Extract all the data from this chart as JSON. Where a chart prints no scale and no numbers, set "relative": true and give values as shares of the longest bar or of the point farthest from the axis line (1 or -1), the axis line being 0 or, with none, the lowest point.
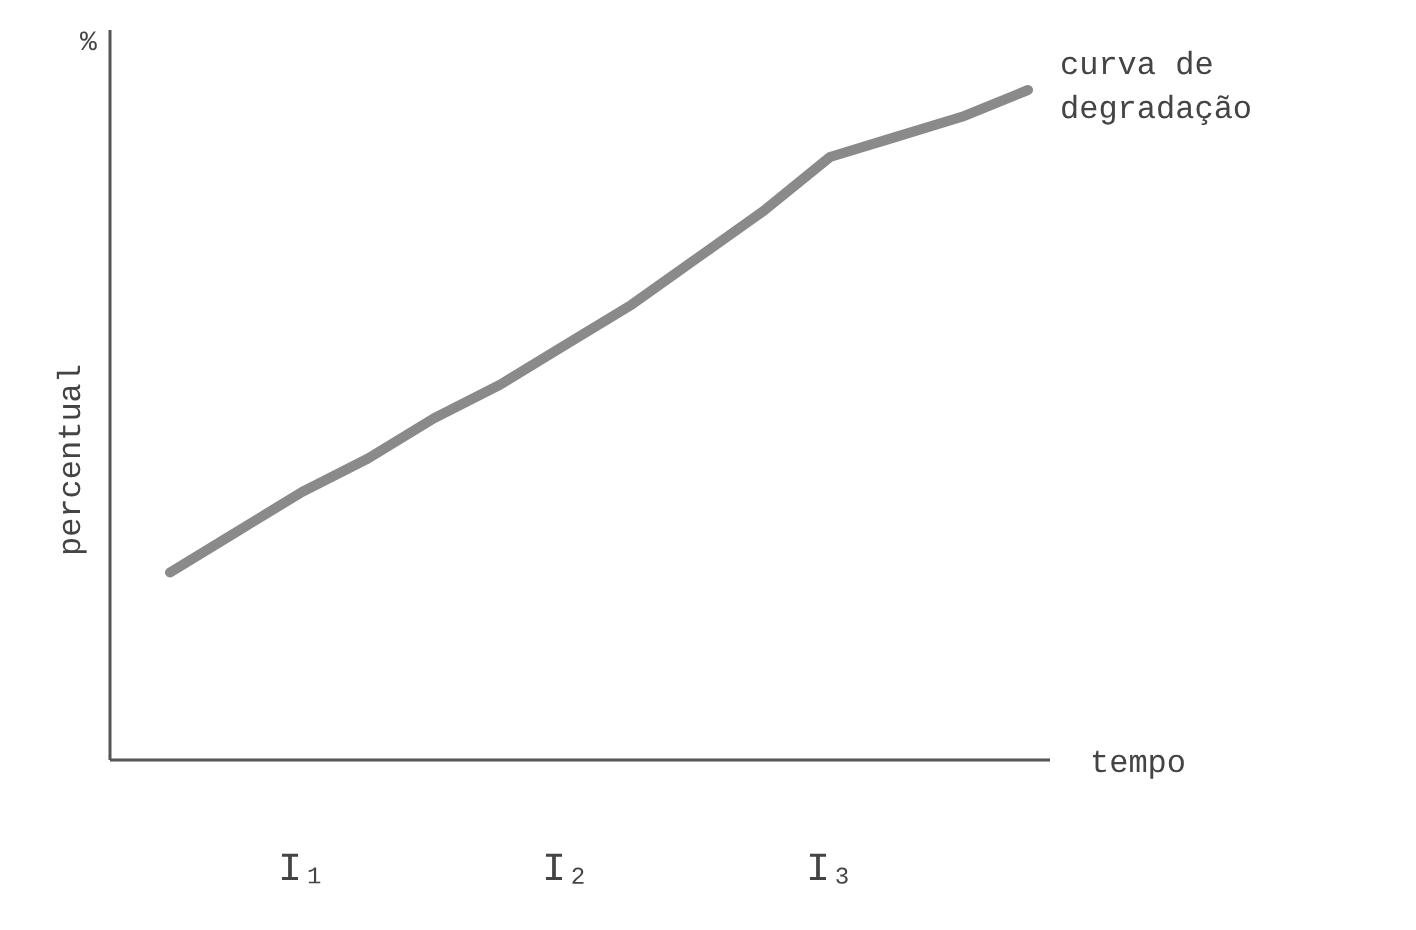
{
  "chart_data": {
    "type": "line",
    "relative": true,
    "xlabel": "tempo",
    "ylabel": "percentual",
    "annotations": [
      "%"
    ],
    "categories": [
      null,
      null,
      "I₁",
      null,
      null,
      null,
      "I₂",
      null,
      null,
      null,
      "I₃",
      null,
      null,
      null
    ],
    "series": [
      {
        "name": "curva de degradação",
        "color": "#8a8a8a",
        "values": [
          0.28,
          0.34,
          0.4,
          0.45,
          0.51,
          0.56,
          0.62,
          0.68,
          0.75,
          0.82,
          0.9,
          0.93,
          0.96,
          1
        ]
      }
    ],
    "marker": "none",
    "line_style": "solid"
  }
}
